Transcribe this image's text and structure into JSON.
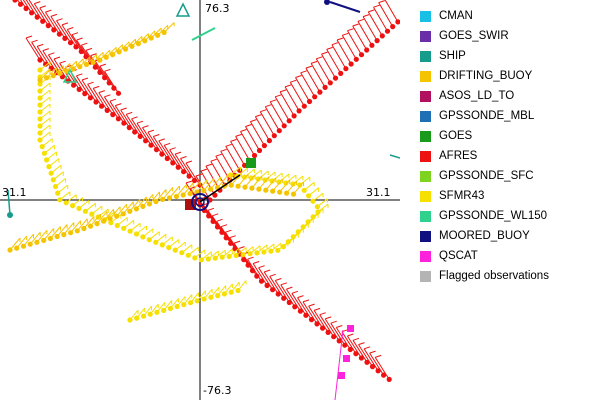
{
  "axes": {
    "top_label": "76.3",
    "bottom_label": "-76.3",
    "left_label": "31.1",
    "right_label": "31.1"
  },
  "legend": [
    {
      "label": "CMAN",
      "color": "#19c0e6"
    },
    {
      "label": "GOES_SWIR",
      "color": "#6a2fa8"
    },
    {
      "label": "SHIP",
      "color": "#179c8c"
    },
    {
      "label": "DRIFTING_BUOY",
      "color": "#f5c400"
    },
    {
      "label": "ASOS_LD_TO",
      "color": "#b0105e"
    },
    {
      "label": "GPSSONDE_MBL",
      "color": "#1f6fb5"
    },
    {
      "label": "GOES",
      "color": "#1a9a1a"
    },
    {
      "label": "AFRES",
      "color": "#ee1111"
    },
    {
      "label": "GPSSONDE_SFC",
      "color": "#7ed321"
    },
    {
      "label": "SFMR43",
      "color": "#f5e000"
    },
    {
      "label": "GPSSONDE_WL150",
      "color": "#2fd18c"
    },
    {
      "label": "MOORED_BUOY",
      "color": "#101080"
    },
    {
      "label": "QSCAT",
      "color": "#ff22dd"
    },
    {
      "label": "Flagged observations",
      "color": "#b4b4b4"
    }
  ]
}
